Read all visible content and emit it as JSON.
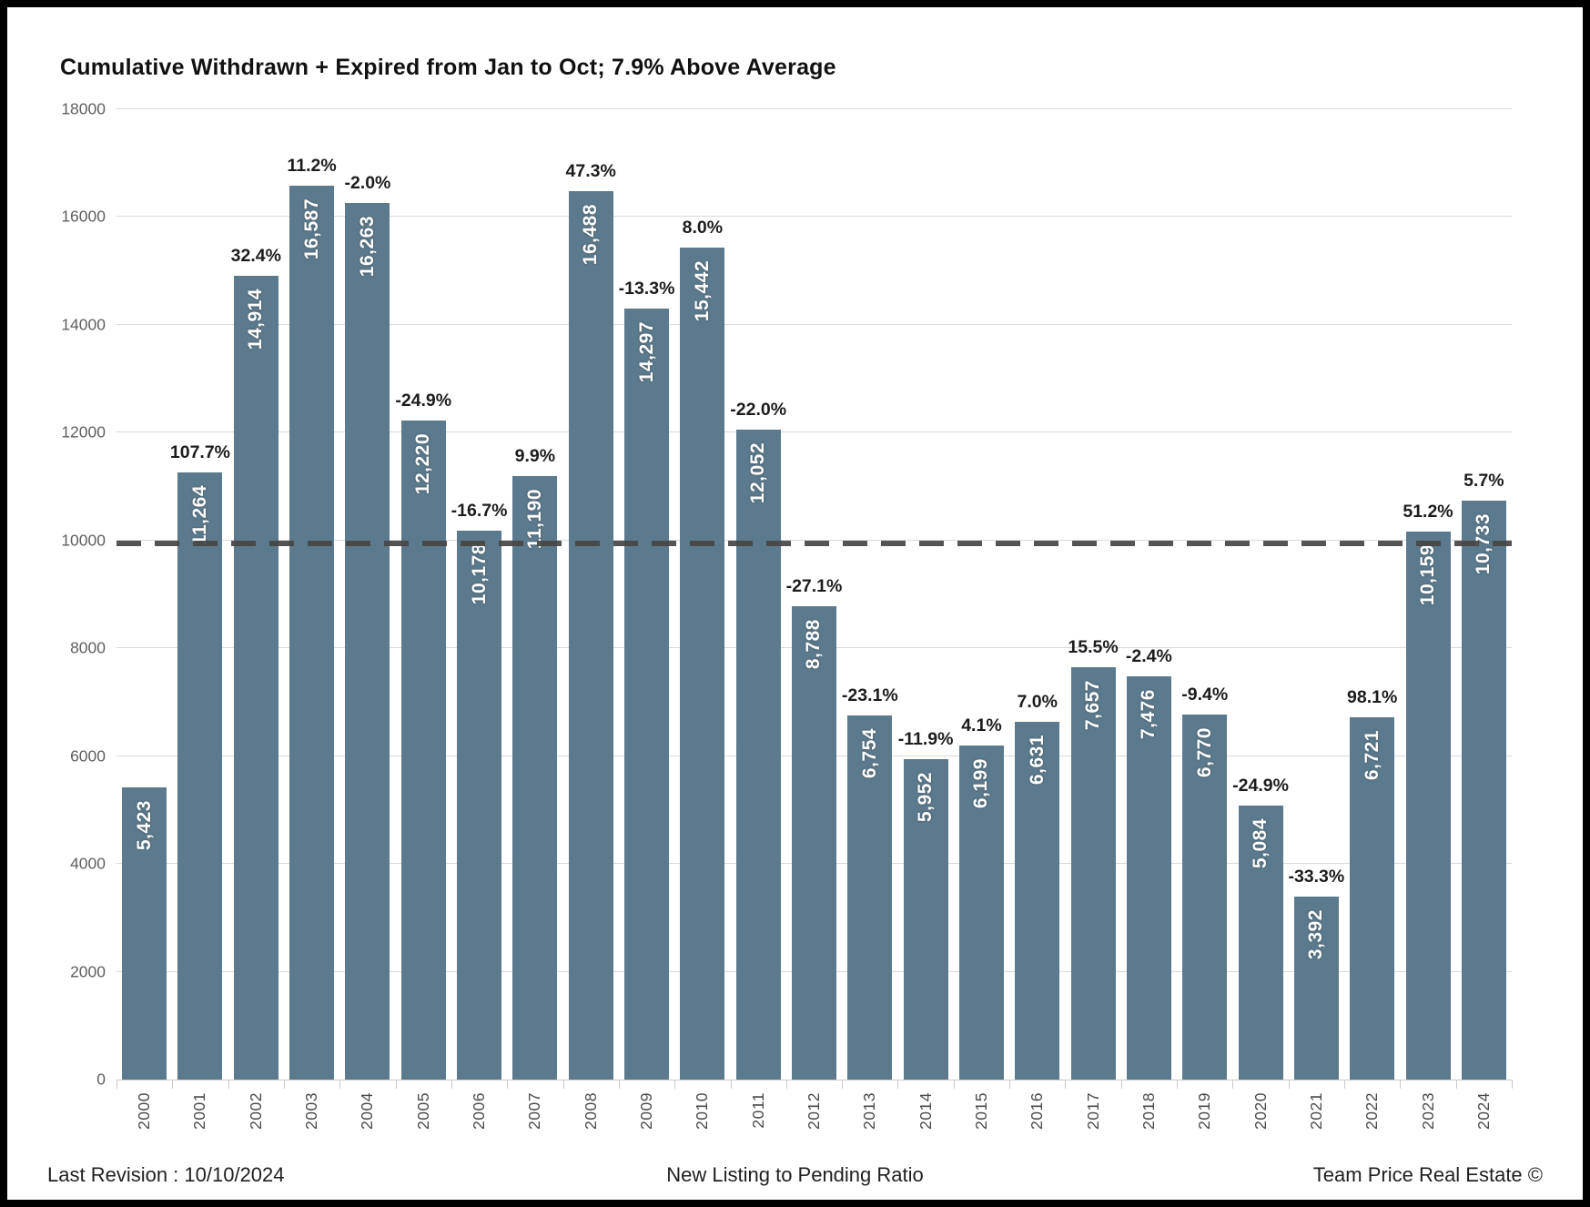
{
  "chart_data": {
    "type": "bar",
    "title": "Cumulative Withdrawn + Expired from Jan to Oct; 7.9% Above Average",
    "categories": [
      "2000",
      "2001",
      "2002",
      "2003",
      "2004",
      "2005",
      "2006",
      "2007",
      "2008",
      "2009",
      "2010",
      "2011",
      "2012",
      "2013",
      "2014",
      "2015",
      "2016",
      "2017",
      "2018",
      "2019",
      "2020",
      "2021",
      "2022",
      "2023",
      "2024"
    ],
    "values": [
      5423,
      11264,
      14914,
      16587,
      16263,
      12220,
      10178,
      11190,
      16488,
      14297,
      15442,
      12052,
      8788,
      6754,
      5952,
      6199,
      6631,
      7657,
      7476,
      6770,
      5084,
      3392,
      6721,
      10159,
      10733
    ],
    "pct_change_labels": [
      null,
      "107.7%",
      "32.4%",
      "11.2%",
      "-2.0%",
      "-24.9%",
      "-16.7%",
      "9.9%",
      "47.3%",
      "-13.3%",
      "8.0%",
      "-22.0%",
      "-27.1%",
      "-23.1%",
      "-11.9%",
      "4.1%",
      "7.0%",
      "15.5%",
      "-2.4%",
      "-9.4%",
      "-24.9%",
      "-33.3%",
      "98.1%",
      "51.2%",
      "5.7%"
    ],
    "xlabel": "",
    "ylabel": "",
    "ylim": [
      0,
      18000
    ],
    "yticks": [
      0,
      2000,
      4000,
      6000,
      8000,
      10000,
      12000,
      14000,
      16000,
      18000
    ],
    "grid": true,
    "legend": false,
    "average_line_value": 9945,
    "bar_color": "#5c7a8d",
    "average_line_color": "#454545"
  },
  "footer": {
    "left": "Last Revision : 10/10/2024",
    "center": "New Listing to Pending Ratio",
    "right": "Team Price Real Estate ©"
  }
}
